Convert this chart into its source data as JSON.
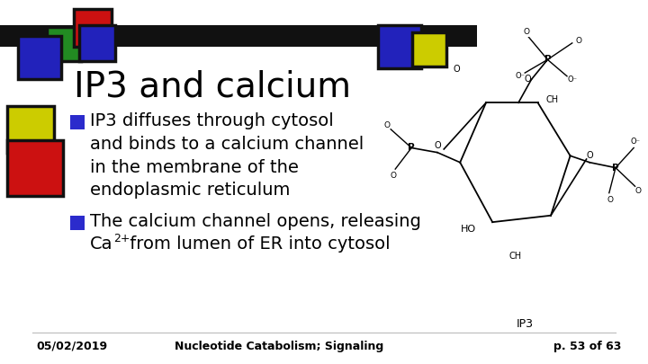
{
  "title": "IP3 and calcium",
  "bullet1_line1": "IP3 diffuses through cytosol",
  "bullet1_line2": "and binds to a calcium channel",
  "bullet1_line3": "in the membrane of the",
  "bullet1_line4": "endoplasmic reticulum",
  "bullet2_line1": "The calcium channel opens, releasing",
  "bullet2_line2_a": "Ca",
  "bullet2_line2_sup": "2+",
  "bullet2_line2_b": " from lumen of ER into cytosol",
  "footer_left": "05/02/2019",
  "footer_mid": "Nucleotide Catabolism; Signaling",
  "footer_right": "p. 53 of 63",
  "bg_color": "#ffffff",
  "bar_color": "#111111",
  "title_color": "#000000",
  "bullet_color": "#000000",
  "bullet_marker_color": "#2B2BCC",
  "footer_color": "#000000"
}
